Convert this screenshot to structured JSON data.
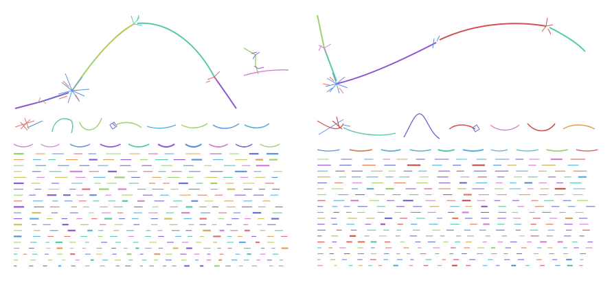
{
  "figure": {
    "panels": [
      {
        "id": "left",
        "palette": [
          "#8e55d4",
          "#54c9a7",
          "#e07070",
          "#9ad36a",
          "#5a8fe0",
          "#d47fd4",
          "#c9c45a",
          "#55b0e0",
          "#e0a055",
          "#6a6ad4"
        ]
      },
      {
        "id": "right",
        "palette": [
          "#8e55d4",
          "#54c9a7",
          "#d05050",
          "#9ad36a",
          "#5a8fe0",
          "#d47fd4",
          "#c9a85a",
          "#55b0e0",
          "#e07a55",
          "#6a6ad4"
        ]
      }
    ]
  }
}
